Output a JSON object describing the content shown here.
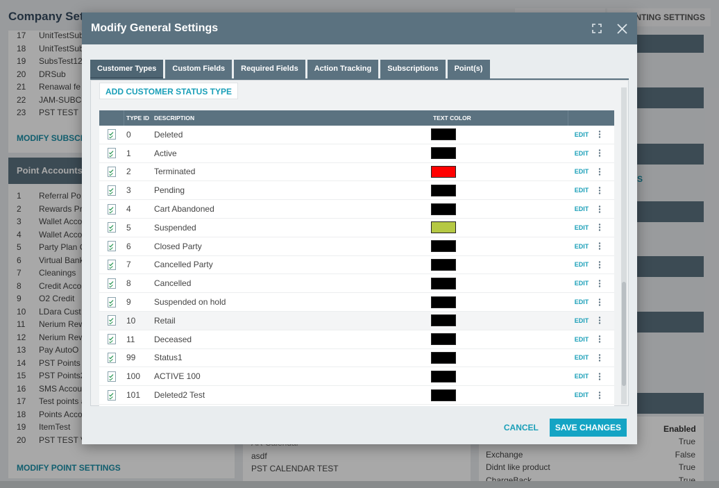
{
  "background": {
    "page_title": "Company Sett",
    "top_tab": "INTING SETTINGS",
    "subscriptions": [
      {
        "num": "17",
        "name": "UnitTestSub"
      },
      {
        "num": "18",
        "name": "UnitTestSub"
      },
      {
        "num": "19",
        "name": "SubsTest12"
      },
      {
        "num": "20",
        "name": "DRSub"
      },
      {
        "num": "21",
        "name": "Renawal fe"
      },
      {
        "num": "22",
        "name": "JAM-SUBC"
      },
      {
        "num": "23",
        "name": "PST TEST"
      }
    ],
    "modify_subscriptions_link": "MODIFY SUBSCR",
    "point_accounts_header": "Point Accounts",
    "point_accounts": [
      {
        "num": "1",
        "name": "Referral Po"
      },
      {
        "num": "2",
        "name": "Rewards Pr"
      },
      {
        "num": "3",
        "name": "Wallet Acco"
      },
      {
        "num": "4",
        "name": "Wallet Acco"
      },
      {
        "num": "5",
        "name": "Party Plan C"
      },
      {
        "num": "6",
        "name": "Virtual Bank"
      },
      {
        "num": "7",
        "name": "Cleanings"
      },
      {
        "num": "8",
        "name": "Credit Acco"
      },
      {
        "num": "9",
        "name": "O2 Credit"
      },
      {
        "num": "10",
        "name": "LDara Cust"
      },
      {
        "num": "11",
        "name": "Nerium Rew"
      },
      {
        "num": "12",
        "name": "Nerium Rew"
      },
      {
        "num": "13",
        "name": "Pay AutoO"
      },
      {
        "num": "14",
        "name": "PST Points"
      },
      {
        "num": "15",
        "name": "PST Points2"
      },
      {
        "num": "16",
        "name": "SMS Accou"
      },
      {
        "num": "17",
        "name": "Test points a"
      },
      {
        "num": "18",
        "name": "Points Acco"
      },
      {
        "num": "19",
        "name": "ItemTest"
      },
      {
        "num": "20",
        "name": "PST TEST V"
      }
    ],
    "modify_point_settings_link": "MODIFY POINT SETTINGS",
    "calendar_items": [
      "AR Calendar",
      "asdf",
      "PST CALENDAR TEST"
    ],
    "partial_link_s": "S",
    "enabled_header": "Enabled",
    "return_reasons": [
      {
        "name": "",
        "value": "True"
      },
      {
        "name": "Exchange",
        "value": "False"
      },
      {
        "name": "Didnt like product",
        "value": "True"
      },
      {
        "name": "ChargeBack",
        "value": "True"
      }
    ]
  },
  "modal": {
    "title": "Modify General Settings",
    "tabs": [
      {
        "label": "Customer Types",
        "active": true
      },
      {
        "label": "Custom Fields",
        "active": false
      },
      {
        "label": "Required Fields",
        "active": false
      },
      {
        "label": "Action Tracking",
        "active": false
      },
      {
        "label": "Subscriptions",
        "active": false
      },
      {
        "label": "Point(s)",
        "active": false
      }
    ],
    "add_button_label": "ADD CUSTOMER STATUS TYPE",
    "columns": {
      "type_id": "TYPE ID",
      "description": "DESCRIPTION",
      "text_color": "TEXT COLOR"
    },
    "edit_label": "EDIT",
    "rows": [
      {
        "id": "0",
        "description": "Deleted",
        "color": "#000000"
      },
      {
        "id": "1",
        "description": "Active",
        "color": "#000000"
      },
      {
        "id": "2",
        "description": "Terminated",
        "color": "#ff0000"
      },
      {
        "id": "3",
        "description": "Pending",
        "color": "#000000"
      },
      {
        "id": "4",
        "description": "Cart Abandoned",
        "color": "#000000"
      },
      {
        "id": "5",
        "description": "Suspended",
        "color": "#b5c843"
      },
      {
        "id": "6",
        "description": "Closed Party",
        "color": "#000000"
      },
      {
        "id": "7",
        "description": "Cancelled Party",
        "color": "#000000"
      },
      {
        "id": "8",
        "description": "Cancelled",
        "color": "#000000"
      },
      {
        "id": "9",
        "description": "Suspended on hold",
        "color": "#000000"
      },
      {
        "id": "10",
        "description": "Retail",
        "color": "#000000"
      },
      {
        "id": "11",
        "description": "Deceased",
        "color": "#000000"
      },
      {
        "id": "99",
        "description": "Status1",
        "color": "#000000"
      },
      {
        "id": "100",
        "description": "ACTIVE 100",
        "color": "#000000"
      },
      {
        "id": "101",
        "description": "Deleted2 Test",
        "color": "#000000"
      }
    ],
    "cancel_label": "CANCEL",
    "save_label": "SAVE CHANGES"
  },
  "icons": {
    "expand": "expand-icon",
    "close": "close-icon",
    "row_check": "checklist-icon",
    "row_menu": "vertical-dots-icon"
  }
}
